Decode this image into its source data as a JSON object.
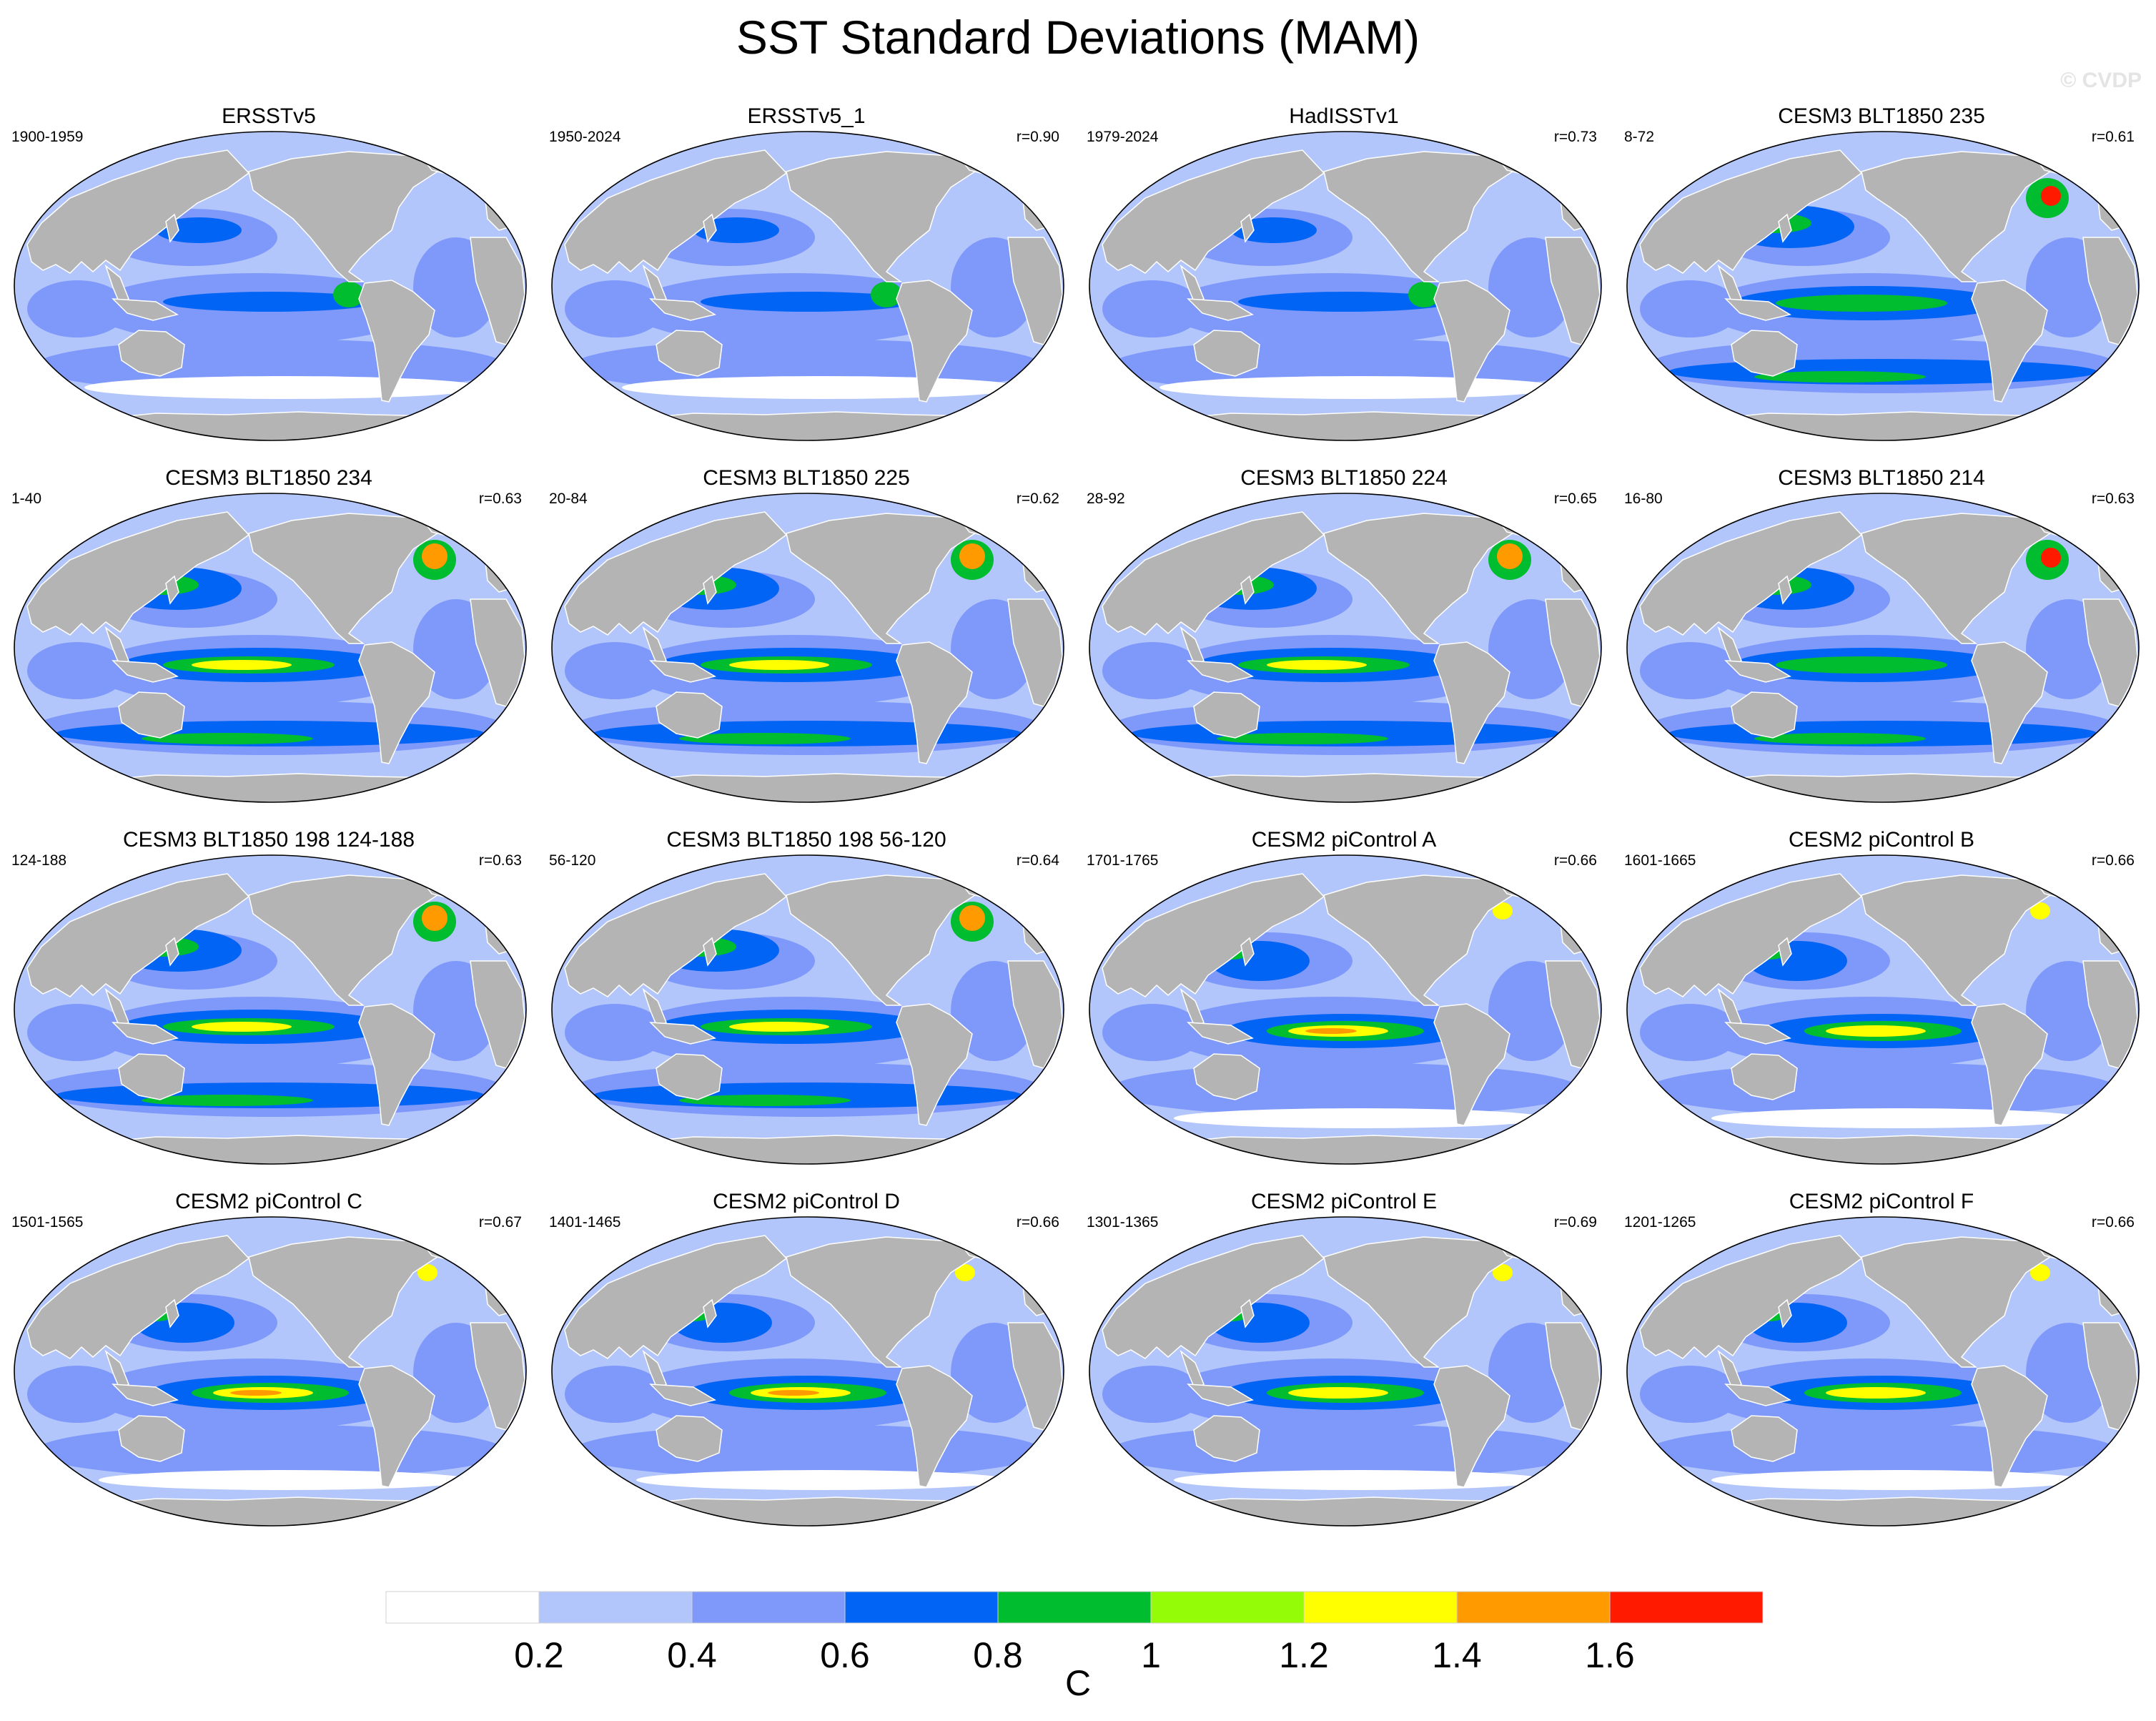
{
  "title": "SST Standard Deviations (MAM)",
  "copyright": "© CVDP",
  "colors": {
    "land": "#b4b4b4",
    "ocean_base": "#b3c6fb",
    "levels": [
      "#ffffff",
      "#b3c6fb",
      "#7f99fb",
      "#0164f5",
      "#00bd2f",
      "#93fc06",
      "#ffff00",
      "#ff9b00",
      "#ff1a00"
    ]
  },
  "colorbar": {
    "ticks": [
      "0.2",
      "0.4",
      "0.6",
      "0.8",
      "1",
      "1.2",
      "1.4",
      "1.6"
    ],
    "units": "C"
  },
  "panels": [
    {
      "title": "ERSSTv5",
      "years": "1900-1959",
      "r": "",
      "intensity": 2,
      "style": "obs"
    },
    {
      "title": "ERSSTv5_1",
      "years": "1950-2024",
      "r": "r=0.90",
      "intensity": 1,
      "style": "obs"
    },
    {
      "title": "HadISSTv1",
      "years": "1979-2024",
      "r": "r=0.73",
      "intensity": 1,
      "style": "obs"
    },
    {
      "title": "CESM3 BLT1850 235",
      "years": "8-72",
      "r": "r=0.61",
      "intensity": 2,
      "style": "cesm3"
    },
    {
      "title": "CESM3 BLT1850 234",
      "years": "1-40",
      "r": "r=0.63",
      "intensity": 3,
      "style": "cesm3"
    },
    {
      "title": "CESM3 BLT1850 225",
      "years": "20-84",
      "r": "r=0.62",
      "intensity": 3,
      "style": "cesm3"
    },
    {
      "title": "CESM3 BLT1850 224",
      "years": "28-92",
      "r": "r=0.65",
      "intensity": 3,
      "style": "cesm3"
    },
    {
      "title": "CESM3 BLT1850 214",
      "years": "16-80",
      "r": "r=0.63",
      "intensity": 2,
      "style": "cesm3"
    },
    {
      "title": "CESM3 BLT1850 198 124-188",
      "years": "124-188",
      "r": "r=0.63",
      "intensity": 3,
      "style": "cesm3"
    },
    {
      "title": "CESM3 BLT1850 198 56-120",
      "years": "56-120",
      "r": "r=0.64",
      "intensity": 3,
      "style": "cesm3"
    },
    {
      "title": "CESM2 piControl A",
      "years": "1701-1765",
      "r": "r=0.66",
      "intensity": 3,
      "style": "cesm2"
    },
    {
      "title": "CESM2 piControl B",
      "years": "1601-1665",
      "r": "r=0.66",
      "intensity": 2,
      "style": "cesm2"
    },
    {
      "title": "CESM2 piControl C",
      "years": "1501-1565",
      "r": "r=0.67",
      "intensity": 3,
      "style": "cesm2"
    },
    {
      "title": "CESM2 piControl D",
      "years": "1401-1465",
      "r": "r=0.66",
      "intensity": 3,
      "style": "cesm2"
    },
    {
      "title": "CESM2 piControl E",
      "years": "1301-1365",
      "r": "r=0.69",
      "intensity": 2,
      "style": "cesm2"
    },
    {
      "title": "CESM2 piControl F",
      "years": "1201-1265",
      "r": "r=0.66",
      "intensity": 2,
      "style": "cesm2"
    }
  ]
}
